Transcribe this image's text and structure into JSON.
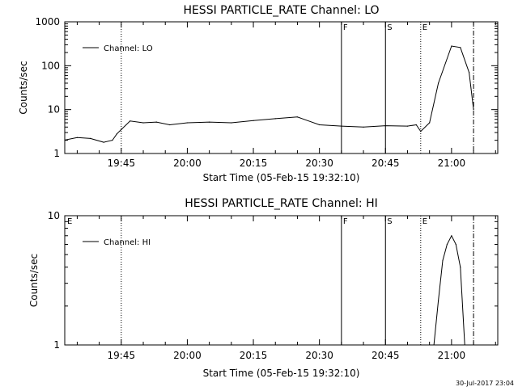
{
  "footer": {
    "timestamp": "30-Jul-2017 23:04"
  },
  "chart_data": [
    {
      "type": "line",
      "title": "HESSI PARTICLE_RATE Channel: LO",
      "xlabel": "Start Time (05-Feb-15 19:32:10)",
      "ylabel": "Counts/sec",
      "y_scale": "log",
      "xlim": [
        "19:32:10",
        "21:10:30"
      ],
      "ylim": [
        1,
        1000
      ],
      "x_tick_labels": [
        "19:45",
        "20:00",
        "20:15",
        "20:30",
        "20:45",
        "21:00"
      ],
      "y_tick_labels": [
        "1",
        "10",
        "100",
        "1000"
      ],
      "legend": {
        "position": "top-left",
        "entries": [
          "Channel: LO"
        ]
      },
      "markers": [
        {
          "label": "",
          "time": "19:45",
          "style": "dotted"
        },
        {
          "label": "F",
          "time": "20:35",
          "style": "solid"
        },
        {
          "label": "S",
          "time": "20:45",
          "style": "solid"
        },
        {
          "label": "E",
          "time": "20:53",
          "style": "dotted"
        },
        {
          "label": "",
          "time": "21:05",
          "style": "dashdot"
        }
      ],
      "series": [
        {
          "name": "Channel: LO",
          "x": [
            "19:32",
            "19:35",
            "19:38",
            "19:41",
            "19:43",
            "19:44",
            "19:45",
            "19:47",
            "19:50",
            "19:53",
            "19:56",
            "20:00",
            "20:05",
            "20:10",
            "20:15",
            "20:20",
            "20:25",
            "20:30",
            "20:35",
            "20:40",
            "20:45",
            "20:50",
            "20:52",
            "20:53",
            "20:55",
            "20:57",
            "21:00",
            "21:02",
            "21:04",
            "21:05"
          ],
          "values": [
            2,
            2.3,
            2.2,
            1.8,
            2,
            2.8,
            3.5,
            5.5,
            5,
            5.2,
            4.5,
            5,
            5.2,
            5,
            5.6,
            6.2,
            6.8,
            4.5,
            4.2,
            4,
            4.3,
            4.2,
            4.5,
            3.2,
            5,
            40,
            280,
            260,
            70,
            10
          ]
        }
      ]
    },
    {
      "type": "line",
      "title": "HESSI PARTICLE_RATE Channel: HI",
      "xlabel": "Start Time (05-Feb-15 19:32:10)",
      "ylabel": "Counts/sec",
      "y_scale": "log",
      "xlim": [
        "19:32:10",
        "21:10:30"
      ],
      "ylim": [
        1,
        10
      ],
      "x_tick_labels": [
        "19:45",
        "20:00",
        "20:15",
        "20:30",
        "20:45",
        "21:00"
      ],
      "y_tick_labels": [
        "1",
        "10"
      ],
      "legend": {
        "position": "top-left",
        "entries": [
          "Channel: HI"
        ]
      },
      "markers": [
        {
          "label": "E",
          "time": "19:32",
          "style": "none"
        },
        {
          "label": "",
          "time": "19:45",
          "style": "dotted"
        },
        {
          "label": "F",
          "time": "20:35",
          "style": "solid"
        },
        {
          "label": "S",
          "time": "20:45",
          "style": "solid"
        },
        {
          "label": "E",
          "time": "20:53",
          "style": "dotted"
        },
        {
          "label": "",
          "time": "21:05",
          "style": "dashdot"
        }
      ],
      "series": [
        {
          "name": "Channel: HI",
          "x": [
            "20:56",
            "20:57",
            "20:58",
            "20:59",
            "21:00",
            "21:01",
            "21:02",
            "21:03"
          ],
          "values": [
            1,
            2.2,
            4.5,
            6,
            7,
            6,
            4,
            1
          ]
        }
      ]
    }
  ]
}
